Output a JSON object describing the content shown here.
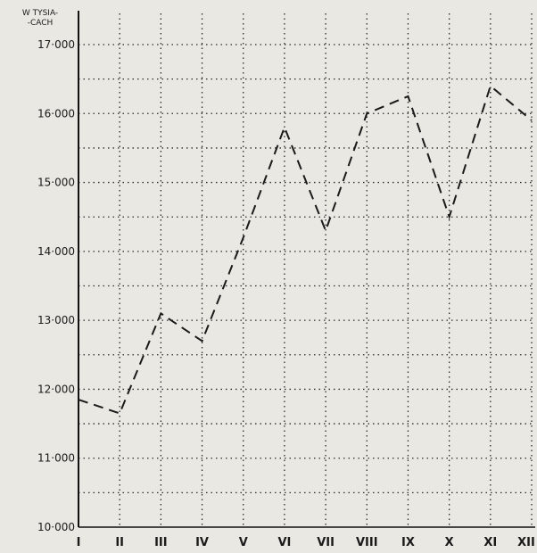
{
  "chart_data": {
    "type": "line",
    "title": "",
    "xlabel": "",
    "ylabel": "",
    "unit_label": [
      "W TYSIA-",
      "-CACH"
    ],
    "categories": [
      "I",
      "II",
      "III",
      "IV",
      "V",
      "VI",
      "VII",
      "VIII",
      "IX",
      "X",
      "XI",
      "XII"
    ],
    "series": [
      {
        "values": [
          11850,
          11650,
          13100,
          12700,
          14200,
          15800,
          14300,
          16000,
          16250,
          14500,
          16400,
          15900
        ]
      }
    ],
    "y_ticks": [
      {
        "value": 10000,
        "label": "10·000"
      },
      {
        "value": 11000,
        "label": "11·000"
      },
      {
        "value": 12000,
        "label": "12·000"
      },
      {
        "value": 13000,
        "label": "13·000"
      },
      {
        "value": 14000,
        "label": "14·000"
      },
      {
        "value": 15000,
        "label": "15·000"
      },
      {
        "value": 16000,
        "label": "16·000"
      },
      {
        "value": 17000,
        "label": "17·000"
      }
    ],
    "ylim": [
      10000,
      17000
    ],
    "grid": true,
    "minor_grid_step": 500,
    "line_style": "dashed",
    "colors": {
      "line": "#1a1a1a",
      "grid": "#2a2a2a",
      "background": "#e9e8e3"
    }
  }
}
